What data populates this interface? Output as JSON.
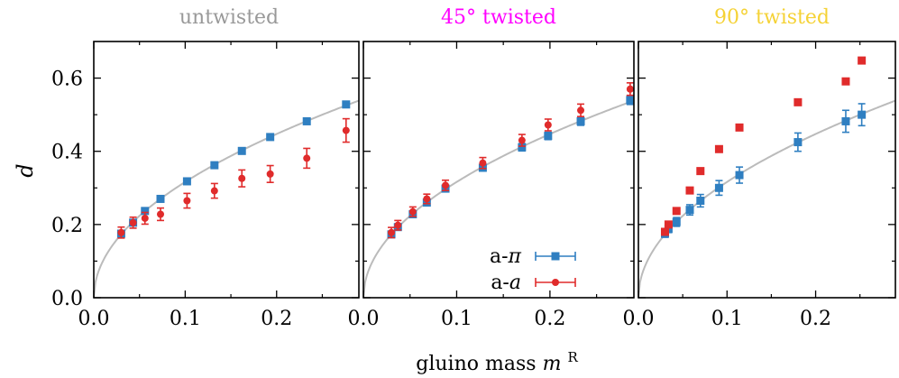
{
  "figure": {
    "xlabel": "gluino mass",
    "xlabel_math": "m",
    "xlabel_sup": "R",
    "ylabel": "d"
  },
  "colors": {
    "a_pi": "#2f7fc1",
    "a_a": "#e02b2b",
    "fit": "#bbbbbb",
    "untwisted": "#999999",
    "twisted45": "#ff00ff",
    "twisted90": "#f5d235"
  },
  "chart_data": [
    {
      "type": "scatter",
      "title": "untwisted",
      "xlim": [
        0.0,
        0.29
      ],
      "ylim": [
        0.0,
        0.7
      ],
      "xticks": [
        "0.0",
        "0.1",
        "0.2"
      ],
      "yticks": [
        "0.0",
        "0.2",
        "0.4",
        "0.6"
      ],
      "grid": false,
      "fit_curve": {
        "form": "d = A*sqrt(m)",
        "A": 1.0
      },
      "series": [
        {
          "name": "a-π",
          "marker": "square",
          "points": [
            {
              "x": 0.03,
              "y": 0.175,
              "err": 0.008
            },
            {
              "x": 0.043,
              "y": 0.205,
              "err": 0.007
            },
            {
              "x": 0.056,
              "y": 0.237,
              "err": 0.007
            },
            {
              "x": 0.073,
              "y": 0.27,
              "err": 0.006
            },
            {
              "x": 0.102,
              "y": 0.318,
              "err": 0.006
            },
            {
              "x": 0.132,
              "y": 0.362,
              "err": 0.005
            },
            {
              "x": 0.162,
              "y": 0.401,
              "err": 0.005
            },
            {
              "x": 0.193,
              "y": 0.439,
              "err": 0.005
            },
            {
              "x": 0.233,
              "y": 0.482,
              "err": 0.005
            },
            {
              "x": 0.276,
              "y": 0.528,
              "err": 0.005
            }
          ]
        },
        {
          "name": "a-a",
          "marker": "circle",
          "points": [
            {
              "x": 0.03,
              "y": 0.178,
              "err": 0.015
            },
            {
              "x": 0.043,
              "y": 0.205,
              "err": 0.015
            },
            {
              "x": 0.056,
              "y": 0.217,
              "err": 0.016
            },
            {
              "x": 0.073,
              "y": 0.228,
              "err": 0.017
            },
            {
              "x": 0.102,
              "y": 0.265,
              "err": 0.02
            },
            {
              "x": 0.132,
              "y": 0.292,
              "err": 0.02
            },
            {
              "x": 0.162,
              "y": 0.326,
              "err": 0.023
            },
            {
              "x": 0.193,
              "y": 0.338,
              "err": 0.023
            },
            {
              "x": 0.233,
              "y": 0.381,
              "err": 0.027
            },
            {
              "x": 0.276,
              "y": 0.457,
              "err": 0.032
            }
          ]
        }
      ]
    },
    {
      "type": "scatter",
      "title": "45° twisted",
      "xlim": [
        0.0,
        0.29
      ],
      "ylim": [
        0.0,
        0.7
      ],
      "xticks": [
        "0.0",
        "0.1",
        "0.2"
      ],
      "yticks": [
        "0.0",
        "0.2",
        "0.4",
        "0.6"
      ],
      "grid": false,
      "fit_curve": {
        "form": "d = A*sqrt(m)",
        "A": 1.0
      },
      "legend": {
        "position": "bottom-right",
        "entries": [
          "a-π",
          "a-a"
        ]
      },
      "series": [
        {
          "name": "a-π",
          "marker": "square",
          "points": [
            {
              "x": 0.03,
              "y": 0.173,
              "err": 0.008
            },
            {
              "x": 0.037,
              "y": 0.193,
              "err": 0.008
            },
            {
              "x": 0.053,
              "y": 0.228,
              "err": 0.008
            },
            {
              "x": 0.068,
              "y": 0.26,
              "err": 0.008
            },
            {
              "x": 0.088,
              "y": 0.298,
              "err": 0.008
            },
            {
              "x": 0.128,
              "y": 0.355,
              "err": 0.009
            },
            {
              "x": 0.17,
              "y": 0.411,
              "err": 0.01
            },
            {
              "x": 0.198,
              "y": 0.442,
              "err": 0.01
            },
            {
              "x": 0.233,
              "y": 0.482,
              "err": 0.011
            },
            {
              "x": 0.286,
              "y": 0.54,
              "err": 0.012
            }
          ]
        },
        {
          "name": "a-a",
          "marker": "circle",
          "points": [
            {
              "x": 0.03,
              "y": 0.178,
              "err": 0.014
            },
            {
              "x": 0.037,
              "y": 0.198,
              "err": 0.013
            },
            {
              "x": 0.053,
              "y": 0.235,
              "err": 0.013
            },
            {
              "x": 0.068,
              "y": 0.27,
              "err": 0.013
            },
            {
              "x": 0.088,
              "y": 0.307,
              "err": 0.014
            },
            {
              "x": 0.128,
              "y": 0.368,
              "err": 0.015
            },
            {
              "x": 0.17,
              "y": 0.43,
              "err": 0.016
            },
            {
              "x": 0.198,
              "y": 0.472,
              "err": 0.016
            },
            {
              "x": 0.233,
              "y": 0.512,
              "err": 0.017
            },
            {
              "x": 0.286,
              "y": 0.57,
              "err": 0.017
            }
          ]
        }
      ]
    },
    {
      "type": "scatter",
      "title": "90° twisted",
      "xlim": [
        0.0,
        0.29
      ],
      "ylim": [
        0.0,
        0.7
      ],
      "xticks": [
        "0.0",
        "0.1",
        "0.2"
      ],
      "yticks": [
        "0.0",
        "0.2",
        "0.4",
        "0.6"
      ],
      "grid": false,
      "fit_curve": {
        "form": "d = A*sqrt(m)",
        "A": 1.0
      },
      "series": [
        {
          "name": "a-π",
          "marker": "square",
          "points": [
            {
              "x": 0.03,
              "y": 0.175,
              "err": 0.01
            },
            {
              "x": 0.034,
              "y": 0.188,
              "err": 0.01
            },
            {
              "x": 0.043,
              "y": 0.207,
              "err": 0.012
            },
            {
              "x": 0.058,
              "y": 0.24,
              "err": 0.014
            },
            {
              "x": 0.07,
              "y": 0.265,
              "err": 0.017
            },
            {
              "x": 0.091,
              "y": 0.3,
              "err": 0.02
            },
            {
              "x": 0.114,
              "y": 0.335,
              "err": 0.022
            },
            {
              "x": 0.18,
              "y": 0.425,
              "err": 0.025
            },
            {
              "x": 0.234,
              "y": 0.482,
              "err": 0.03
            },
            {
              "x": 0.252,
              "y": 0.5,
              "err": 0.03
            }
          ]
        },
        {
          "name": "a-a",
          "marker": "square",
          "points": [
            {
              "x": 0.03,
              "y": 0.18,
              "err": 0.006
            },
            {
              "x": 0.034,
              "y": 0.2,
              "err": 0.006
            },
            {
              "x": 0.043,
              "y": 0.237,
              "err": 0.006
            },
            {
              "x": 0.058,
              "y": 0.293,
              "err": 0.006
            },
            {
              "x": 0.07,
              "y": 0.346,
              "err": 0.006
            },
            {
              "x": 0.091,
              "y": 0.406,
              "err": 0.006
            },
            {
              "x": 0.114,
              "y": 0.465,
              "err": 0.006
            },
            {
              "x": 0.18,
              "y": 0.534,
              "err": 0.006
            },
            {
              "x": 0.234,
              "y": 0.591,
              "err": 0.006
            },
            {
              "x": 0.252,
              "y": 0.648,
              "err": 0.006
            }
          ]
        }
      ]
    }
  ]
}
